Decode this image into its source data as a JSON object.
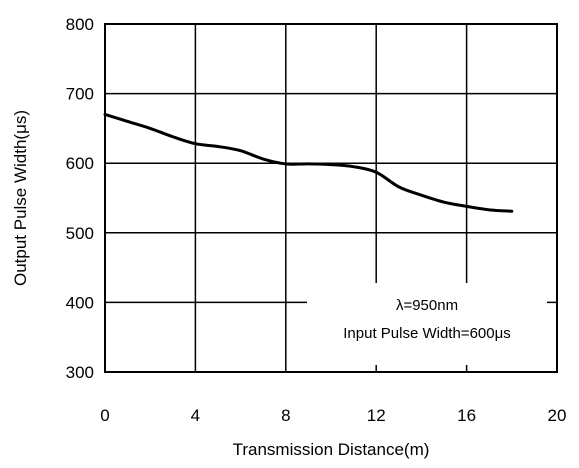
{
  "chart_data": {
    "type": "line",
    "title": "",
    "xlabel": "Transmission Distance(m)",
    "ylabel": "Output Pulse Width(μs)",
    "xlim": [
      0,
      20
    ],
    "ylim": [
      300,
      800
    ],
    "x_ticks": [
      "0",
      "4",
      "8",
      "12",
      "16",
      "20"
    ],
    "y_ticks": [
      "300",
      "400",
      "500",
      "600",
      "700",
      "800"
    ],
    "grid": true,
    "series": [
      {
        "x": [
          0,
          1,
          2,
          3,
          4,
          5,
          6,
          7,
          8,
          9,
          10,
          11,
          12,
          13,
          14,
          15,
          16,
          17,
          18
        ],
        "y": [
          670,
          660,
          650,
          638,
          628,
          624,
          618,
          606,
          599,
          599,
          598,
          595,
          587,
          566,
          554,
          544,
          538,
          533,
          531
        ]
      }
    ],
    "annotation": {
      "line1": "λ=950nm",
      "line2": "Input Pulse Width=600μs"
    }
  }
}
